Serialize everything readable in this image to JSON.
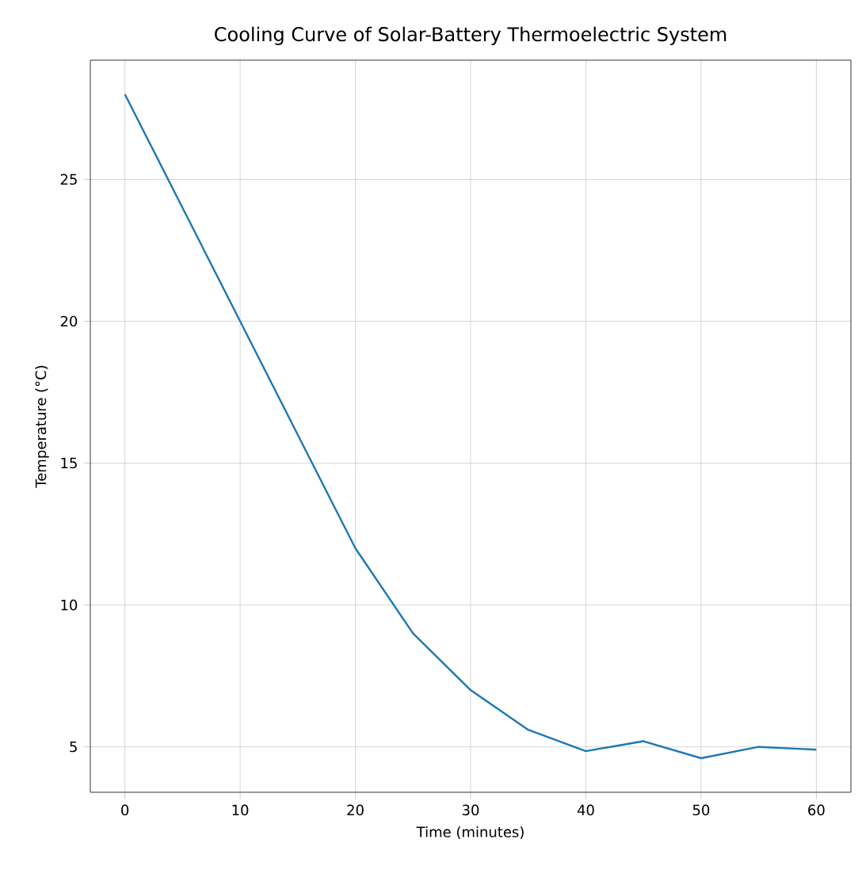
{
  "chart_data": {
    "type": "line",
    "title": "Cooling Curve of Solar-Battery Thermoelectric System",
    "xlabel": "Time (minutes)",
    "ylabel": "Temperature (°C)",
    "x": [
      0,
      5,
      10,
      15,
      20,
      25,
      30,
      35,
      40,
      45,
      50,
      55,
      60
    ],
    "series": [
      {
        "color": "#1f77b4",
        "values": [
          28,
          24,
          20,
          16,
          12,
          9,
          7,
          5.6,
          4.85,
          5.2,
          4.6,
          5.0,
          4.9
        ]
      }
    ],
    "xlim": [
      -3,
      63
    ],
    "ylim": [
      3.4,
      29.2
    ],
    "xticks": [
      0,
      10,
      20,
      30,
      40,
      50,
      60
    ],
    "yticks": [
      5,
      10,
      15,
      20,
      25
    ],
    "grid": true,
    "marker": "none",
    "line_style": "solid"
  }
}
